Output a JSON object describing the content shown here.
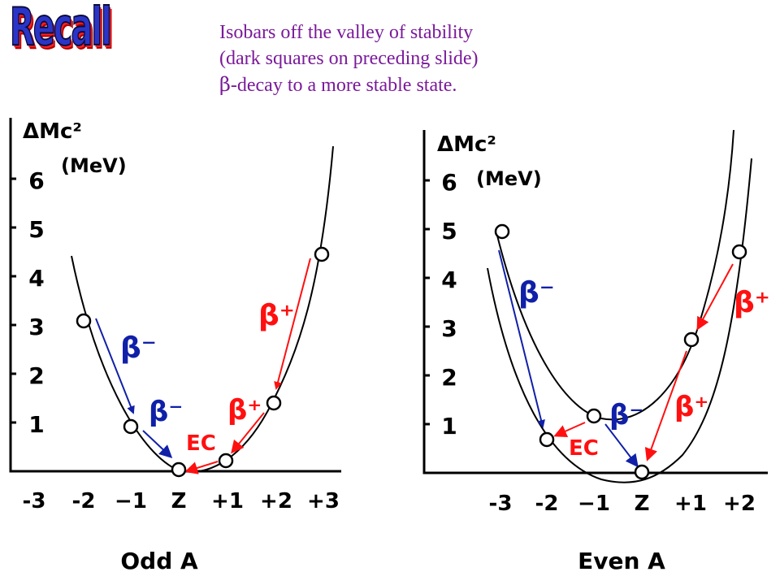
{
  "title": "Recall",
  "caption": {
    "line1": "Isobars off the valley of stability",
    "line2": "(dark squares on preceding slide)",
    "line3_symbol": "β",
    "line3_rest": "-decay to a more stable state."
  },
  "colors": {
    "blue": "#1020a8",
    "red": "#ff1010",
    "caption": "#7a1a9a"
  },
  "odd": {
    "ylabel_top": "ΔMc²",
    "ylabel_unit": "(MeV)",
    "yticks": [
      "1",
      "2",
      "3",
      "4",
      "5",
      "6"
    ],
    "xticks": [
      "-3",
      "-2",
      "−1",
      "Z",
      "+1",
      "+2",
      "+3"
    ],
    "xlabel": "Odd A",
    "labels": {
      "bm1": "β⁻",
      "bm2": "β⁻",
      "bp1": "β⁺",
      "bp2": "β⁺",
      "ec": "EC"
    }
  },
  "even": {
    "ylabel_top": "ΔMc²",
    "ylabel_unit": "(MeV)",
    "yticks": [
      "1",
      "2",
      "3",
      "4",
      "5",
      "6"
    ],
    "xticks": [
      "-3",
      "-2",
      "−1",
      "Z",
      "+1",
      "+2"
    ],
    "xlabel": "Even A",
    "labels": {
      "bm1": "β⁻",
      "bm2": "β⁻",
      "bp1": "β⁺",
      "bp2": "β⁺",
      "ec": "EC"
    }
  }
}
